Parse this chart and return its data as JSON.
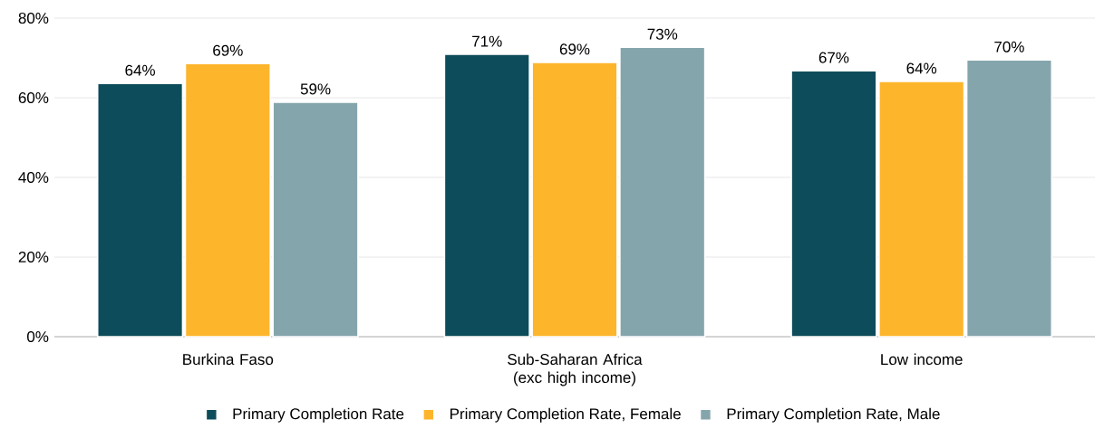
{
  "chart_data": {
    "type": "bar",
    "categories": [
      "Burkina Faso",
      "Sub-Saharan Africa (exc high income)",
      "Low income"
    ],
    "series": [
      {
        "name": "Primary Completion Rate",
        "color": "#0d4c5a",
        "values": [
          63.6,
          70.9,
          66.8
        ],
        "value_labels": [
          "64%",
          "71%",
          "67%"
        ]
      },
      {
        "name": "Primary Completion Rate, Female",
        "color": "#fdb52c",
        "values": [
          68.6,
          68.9,
          64.1
        ],
        "value_labels": [
          "69%",
          "69%",
          "64%"
        ]
      },
      {
        "name": "Primary Completion Rate, Male",
        "color": "#85a5ac",
        "values": [
          58.9,
          72.7,
          69.5
        ],
        "value_labels": [
          "59%",
          "73%",
          "70%"
        ]
      }
    ],
    "ylim": [
      0,
      80
    ],
    "yticks": [
      {
        "value": 0,
        "label": "0%"
      },
      {
        "value": 20,
        "label": "20%"
      },
      {
        "value": 40,
        "label": "40%"
      },
      {
        "value": 60,
        "label": "60%"
      },
      {
        "value": 80,
        "label": "80%"
      }
    ],
    "grid": "y",
    "legend": "bottom"
  }
}
